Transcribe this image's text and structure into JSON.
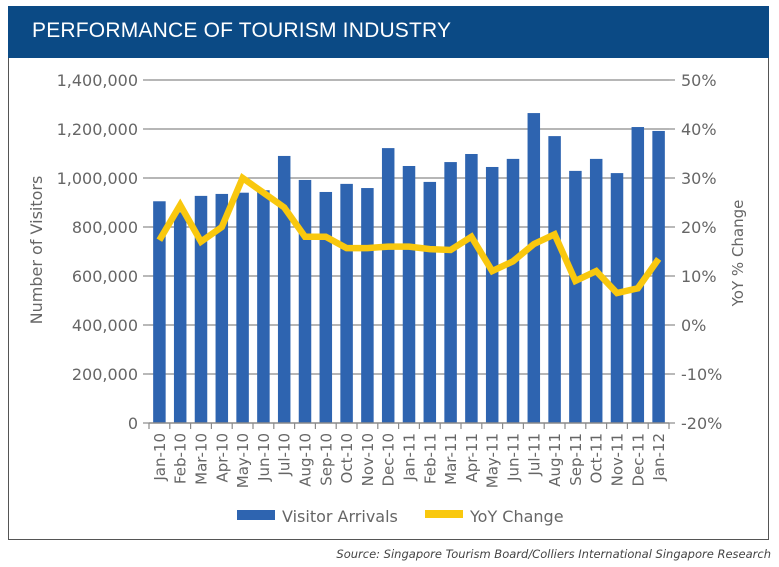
{
  "header": {
    "title": "PERFORMANCE OF TOURISM INDUSTRY"
  },
  "source": "Source: Singapore Tourism Board/Colliers International Singapore Research",
  "colors": {
    "header_bg": "#0b4a85",
    "bar": "#2e64b0",
    "line": "#f9c80e",
    "grid": "#888888",
    "text": "#666666"
  },
  "chart_data": {
    "type": "bar",
    "title": "PERFORMANCE OF TOURISM INDUSTRY",
    "xlabel": "",
    "ylabel": "Number of Visitors",
    "y2label": "YoY % Change",
    "ylim": [
      0,
      1400000
    ],
    "y2lim": [
      -20,
      50
    ],
    "yticks": [
      "0",
      "200,000",
      "400,000",
      "600,000",
      "800,000",
      "1,000,000",
      "1,200,000",
      "1,400,000"
    ],
    "y2ticks": [
      "-20%",
      "-10%",
      "0%",
      "10%",
      "20%",
      "30%",
      "40%",
      "50%"
    ],
    "grid": true,
    "legend_position": "bottom",
    "categories": [
      "Jan-10",
      "Feb-10",
      "Mar-10",
      "Apr-10",
      "May-10",
      "Jun-10",
      "Jul-10",
      "Aug-10",
      "Sep-10",
      "Oct-10",
      "Nov-10",
      "Dec-10",
      "Jan-11",
      "Feb-11",
      "Mar-11",
      "Apr-11",
      "May-11",
      "Jun-11",
      "Jul-11",
      "Aug-11",
      "Sep-11",
      "Oct-11",
      "Nov-11",
      "Dec-11",
      "Jan-12"
    ],
    "series": [
      {
        "name": "Visitor Arrivals",
        "type": "bar",
        "axis": "left",
        "values": [
          905000,
          860000,
          927000,
          935000,
          940000,
          950000,
          1090000,
          992000,
          943000,
          976000,
          959000,
          1122000,
          1049000,
          984000,
          1065000,
          1098000,
          1045000,
          1078000,
          1265000,
          1171000,
          1029000,
          1078000,
          1020000,
          1208000,
          1192000
        ]
      },
      {
        "name": "YoY Change",
        "type": "line",
        "axis": "right",
        "values": [
          17.3,
          24.5,
          17,
          20,
          30,
          27,
          24,
          18,
          18,
          15.7,
          15.7,
          16,
          16,
          15.5,
          15.3,
          18,
          11,
          13,
          16.5,
          18.5,
          9,
          11,
          6.5,
          7.5,
          13.5
        ]
      }
    ]
  }
}
